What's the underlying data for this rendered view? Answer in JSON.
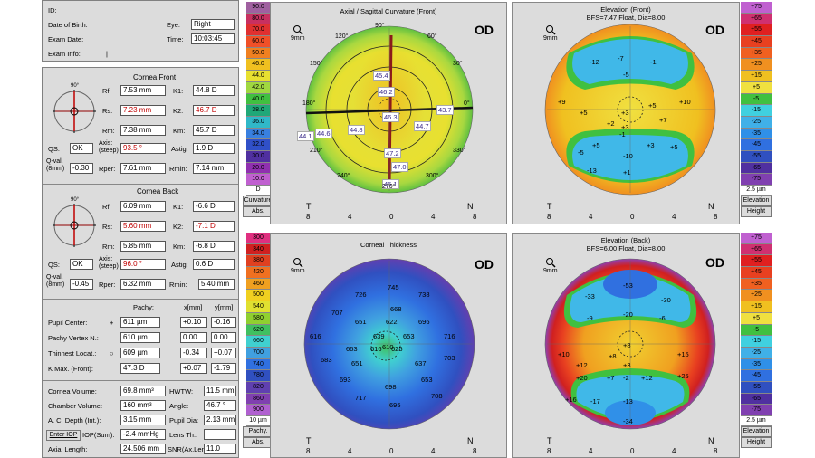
{
  "patient": {
    "id_label": "ID:",
    "dob_label": "Date of Birth:",
    "exam_date_label": "Exam Date:",
    "exam_info_label": "Exam Info:",
    "exam_info_value": "|",
    "eye_label": "Eye:",
    "eye_value": "Right",
    "time_label": "Time:",
    "time_value": "10:03:45"
  },
  "cornea_front": {
    "title": "Cornea Front",
    "rf_label": "Rf:",
    "rf": "7.53 mm",
    "k1_label": "K1:",
    "k1": "44.8 D",
    "rs_label": "Rs:",
    "rs": "7.23 mm",
    "k2_label": "K2:",
    "k2": "46.7 D",
    "rm_label": "Rm:",
    "rm": "7.38 mm",
    "km_label": "Km:",
    "km": "45.7 D",
    "qs_label": "QS:",
    "qs": "OK",
    "axis_label": "Axis: (steep)",
    "axis": "93.5 °",
    "astig_label": "Astig:",
    "astig": "1.9 D",
    "qval_label": "Q-val. (8mm)",
    "qval": "-0.30",
    "rper_label": "Rper:",
    "rper": "7.61 mm",
    "rmin_label": "Rmin:",
    "rmin": "7.14 mm"
  },
  "cornea_back": {
    "title": "Cornea Back",
    "rf_label": "Rf:",
    "rf": "6.09 mm",
    "k1_label": "K1:",
    "k1": "-6.6 D",
    "rs_label": "Rs:",
    "rs": "5.60 mm",
    "k2_label": "K2:",
    "k2": "-7.1 D",
    "rm_label": "Rm:",
    "rm": "5.85 mm",
    "km_label": "Km:",
    "km": "-6.8 D",
    "qs_label": "QS:",
    "qs": "OK",
    "axis_label": "Axis: (steep)",
    "axis": "96.0 °",
    "astig_label": "Astig:",
    "astig": "0.6 D",
    "qval_label": "Q-val. (8mm)",
    "qval": "-0.45",
    "rper_label": "Rper:",
    "rper": "6.32 mm",
    "rmin_label": "Rmin:",
    "rmin": "5.40 mm"
  },
  "pachy": {
    "pachy_header": "Pachy:",
    "x_header": "x[mm]",
    "y_header": "y[mm]",
    "rows": [
      {
        "label": "Pupil Center:",
        "sym": "+",
        "pachy": "611 µm",
        "x": "+0.10",
        "y": "-0.16"
      },
      {
        "label": "Pachy Vertex N.:",
        "sym": "",
        "pachy": "610 µm",
        "x": "0.00",
        "y": "0.00"
      },
      {
        "label": "Thinnest Locat.:",
        "sym": "○",
        "pachy": "609 µm",
        "x": "-0.34",
        "y": "+0.07"
      },
      {
        "label": "K Max. (Front):",
        "sym": "",
        "pachy": "47.3 D",
        "x": "+0.07",
        "y": "-1.79"
      }
    ]
  },
  "volumes": {
    "cv_label": "Cornea Volume:",
    "cv": "69.8 mm³",
    "hwtw_label": "HWTW:",
    "hwtw": "11.5 mm",
    "chv_label": "Chamber Volume:",
    "chv": "160 mm³",
    "angle_label": "Angle:",
    "angle": "46.7 °",
    "acd_label": "A. C. Depth (Int.):",
    "acd": "3.15 mm",
    "pupil_label": "Pupil Dia:",
    "pupil": "2.13 mm",
    "iop_button": "Enter IOP",
    "iop_label": "IOP(Sum):",
    "iop": "-2.4 mmHg",
    "lens_label": "Lens Th.:",
    "lens": "",
    "axial_label": "Axial Length:",
    "axial": "24.506 mm",
    "snr_label": "SNR(Ax.Len):",
    "snr": "11.0"
  },
  "curv_scale": {
    "values": [
      "90.0",
      "80.0",
      "70.0",
      "60.0",
      "50.0",
      "46.0",
      "44.0",
      "42.0",
      "40.0",
      "38.0",
      "36.0",
      "34.0",
      "32.0",
      "30.0",
      "20.0",
      "10.0"
    ],
    "colors": [
      "#a060a0",
      "#c83060",
      "#e03030",
      "#f05028",
      "#f08020",
      "#f0c020",
      "#e8e030",
      "#a0d840",
      "#40c040",
      "#20a878",
      "#30b8c8",
      "#3880e0",
      "#3050c8",
      "#5030a0",
      "#9030b0",
      "#c060d0"
    ],
    "unit": "D",
    "btn1": "Curvature",
    "btn2": "Abs."
  },
  "pachy_scale": {
    "values": [
      "300",
      "340",
      "380",
      "420",
      "460",
      "500",
      "540",
      "580",
      "620",
      "660",
      "700",
      "740",
      "780",
      "820",
      "860",
      "900"
    ],
    "colors": [
      "#e03080",
      "#d02020",
      "#e04020",
      "#f07020",
      "#f0a020",
      "#f0d020",
      "#e0e030",
      "#90d030",
      "#40c060",
      "#40d0d0",
      "#40a0e0",
      "#3070e0",
      "#3050c0",
      "#6040b0",
      "#8040b0",
      "#b060d0"
    ],
    "unit": "10 µm",
    "btn1": "Pachy.",
    "btn2": "Abs."
  },
  "elev_front_scale": {
    "values": [
      "+75",
      "+65",
      "+55",
      "+45",
      "+35",
      "+25",
      "+15",
      "+5",
      "-5",
      "-15",
      "-25",
      "-35",
      "-45",
      "-55",
      "-65",
      "-75"
    ],
    "unit": "2.5 µm",
    "btn1": "Elevation",
    "btn2": "Height"
  },
  "elev_back_scale": {
    "values": [
      "+75",
      "+65",
      "+55",
      "+45",
      "+35",
      "+25",
      "+15",
      "+5",
      "-5",
      "-15",
      "-25",
      "-35",
      "-45",
      "-55",
      "-65",
      "-75"
    ],
    "unit": "2.5 µm",
    "btn1": "Elevation",
    "btn2": "Height"
  },
  "elev_scale_colors": [
    "#c060d0",
    "#d03070",
    "#e02020",
    "#e84020",
    "#f06020",
    "#f09020",
    "#f0c020",
    "#f0e040",
    "#40c040",
    "#40d0e0",
    "#40b0e8",
    "#3090e8",
    "#3070e0",
    "#3050c0",
    "#5030a0",
    "#8040b0"
  ],
  "maps": {
    "axial": {
      "title": "Axial / Sagittal Curvature (Front)",
      "od": "OD",
      "zoom": "9mm",
      "x_ticks": [
        "8",
        "4",
        "0",
        "4",
        "8"
      ],
      "left_label": "T",
      "right_label": "N",
      "angles": [
        "90°",
        "120°",
        "150°",
        "180°",
        "210°",
        "240°",
        "270°",
        "300°",
        "330°",
        "0°",
        "30°",
        "60°"
      ],
      "values": [
        "45.4",
        "46.2",
        "46.3",
        "43.7",
        "44.1",
        "44.6",
        "44.8",
        "44.7",
        "47.2",
        "47.0",
        "46.1"
      ]
    },
    "thick": {
      "title": "Corneal Thickness",
      "od": "OD",
      "zoom": "9mm",
      "x_ticks": [
        "8",
        "4",
        "0",
        "4",
        "8"
      ],
      "left_label": "T",
      "right_label": "N",
      "values": [
        "745",
        "726",
        "738",
        "707",
        "668",
        "651",
        "622",
        "696",
        "616",
        "639",
        "610",
        "653",
        "716",
        "663",
        "616",
        "625",
        "703",
        "683",
        "651",
        "637",
        "693",
        "698",
        "653",
        "717",
        "695",
        "708"
      ]
    },
    "ef": {
      "title": "Elevation (Front)",
      "subtitle": "BFS=7.47 Float, Dia=8.00",
      "od": "OD",
      "zoom": "9mm",
      "x_ticks": [
        "8",
        "4",
        "0",
        "4",
        "8"
      ],
      "left_label": "T",
      "right_label": "N",
      "values": [
        "-12",
        "-7",
        "-1",
        "-5",
        "+9",
        "+5",
        "+3",
        "+5",
        "+10",
        "+3",
        "+2",
        "+7",
        "+5",
        "-1",
        "+3",
        "+5",
        "-5",
        "-10",
        "-13",
        "+1"
      ]
    },
    "eb": {
      "title": "Elevation (Back)",
      "subtitle": "BFS=6.00 Float, Dia=8.00",
      "od": "OD",
      "zoom": "9mm",
      "x_ticks": [
        "8",
        "4",
        "0",
        "4",
        "8"
      ],
      "left_label": "T",
      "right_label": "N",
      "values": [
        "-53",
        "-33",
        "-30",
        "-9",
        "-20",
        "-6",
        "+10",
        "+8",
        "+15",
        "+12",
        "+3",
        "+8",
        "+25",
        "+20",
        "+16",
        "-2",
        "+7",
        "+12",
        "-13",
        "-17",
        "-34"
      ]
    }
  }
}
